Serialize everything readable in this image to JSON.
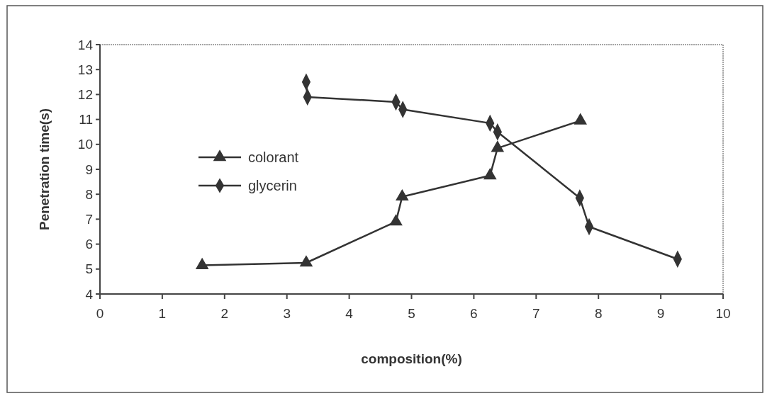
{
  "chart_data": {
    "type": "line",
    "xlabel": "composition(%)",
    "ylabel": "Penetration time(s)",
    "xlim": [
      0,
      10
    ],
    "xticks": [
      0,
      1,
      2,
      3,
      4,
      5,
      6,
      7,
      8,
      9,
      10
    ],
    "ylim": [
      4,
      14
    ],
    "yticks": [
      4,
      5,
      6,
      7,
      8,
      9,
      10,
      11,
      12,
      13,
      14
    ],
    "grid": false,
    "legend": "left",
    "line_style": "solid",
    "series": [
      {
        "name": "colorant",
        "color": "#333333",
        "marker": "triangle",
        "x": [
          1.64,
          3.31,
          4.75,
          4.85,
          6.26,
          6.38,
          7.71
        ],
        "values": [
          5.15,
          5.25,
          6.9,
          7.9,
          8.75,
          9.85,
          10.95
        ]
      },
      {
        "name": "glycerin",
        "color": "#333333",
        "marker": "diamond",
        "x": [
          3.31,
          3.33,
          4.75,
          4.86,
          6.26,
          6.38,
          7.7,
          7.85,
          9.27
        ],
        "values": [
          12.5,
          11.9,
          11.7,
          11.4,
          10.85,
          10.5,
          7.85,
          6.7,
          5.4
        ]
      }
    ]
  }
}
